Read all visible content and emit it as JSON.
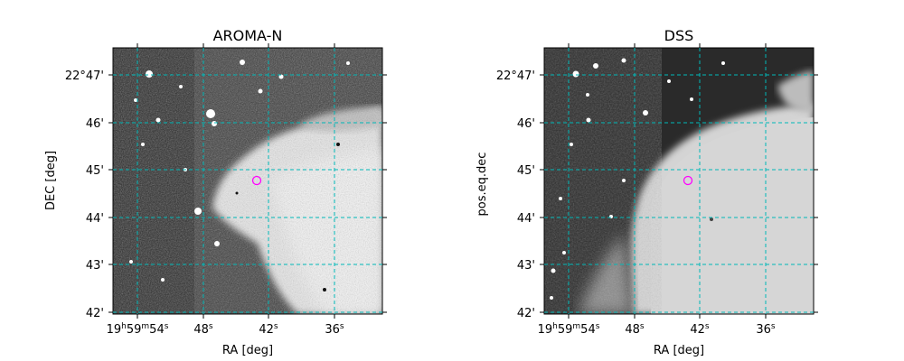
{
  "panels": [
    {
      "title": "AROMA-N",
      "xlabel": "RA [deg]",
      "ylabel": "DEC [deg]",
      "kind": "aroma"
    },
    {
      "title": "DSS",
      "xlabel": "RA [deg]",
      "ylabel": "pos.eq.dec",
      "kind": "dss"
    }
  ],
  "axes": {
    "x_ticks": [
      {
        "value": 54,
        "label": "19h59m54s"
      },
      {
        "value": 48,
        "label": "48s"
      },
      {
        "value": 42,
        "label": "42s"
      },
      {
        "value": 36,
        "label": "36s"
      }
    ],
    "y_ticks": [
      {
        "value": 47,
        "label": "22°47'"
      },
      {
        "value": 46,
        "label": "46'"
      },
      {
        "value": 45,
        "label": "45'"
      },
      {
        "value": 44,
        "label": "44'"
      },
      {
        "value": 43,
        "label": "43'"
      },
      {
        "value": 42,
        "label": "42'"
      }
    ]
  },
  "marker": {
    "shape": "circle",
    "color": "#ff00ff"
  },
  "grid": {
    "on": true,
    "color": "#00b8b8",
    "style": "dashed"
  }
}
